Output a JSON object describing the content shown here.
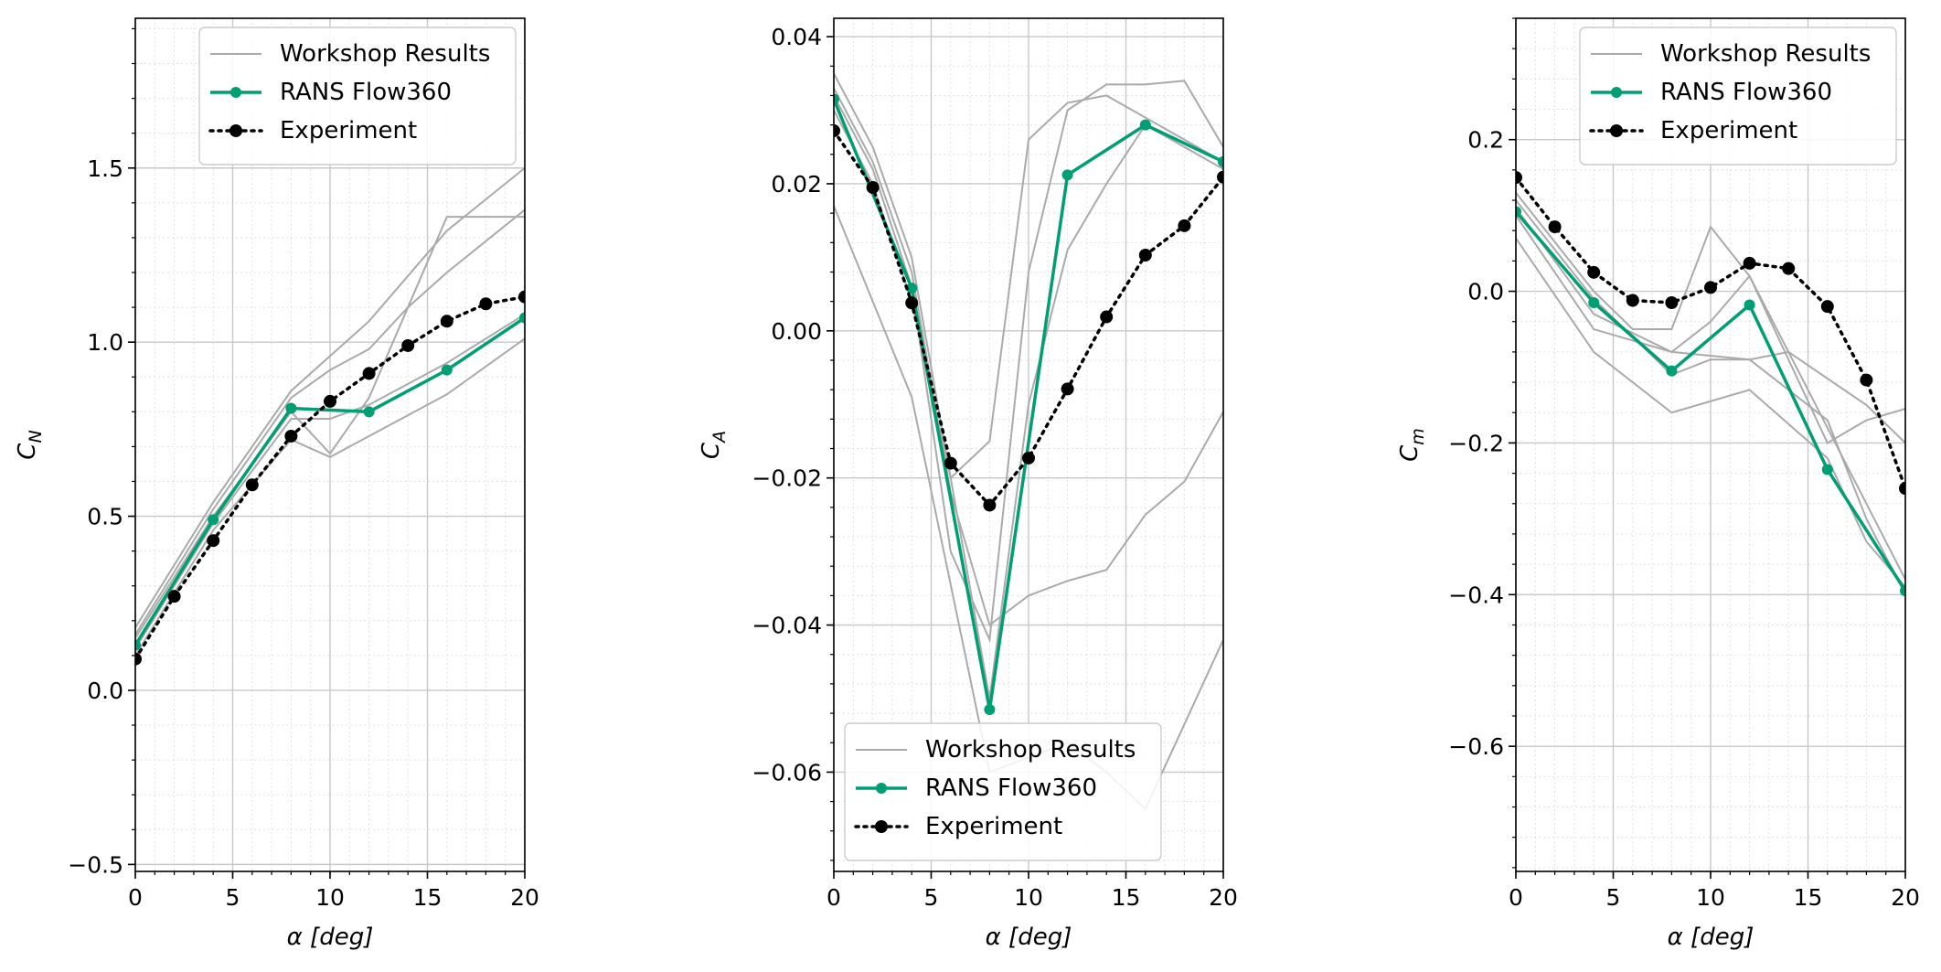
{
  "chart_data": [
    {
      "type": "line",
      "xlabel": "α [deg]",
      "ylabel": "C_N",
      "xlim": [
        0,
        20
      ],
      "ylim": [
        -0.52,
        1.93
      ],
      "xticks": [
        0,
        5,
        10,
        15,
        20
      ],
      "yticks": [
        -0.5,
        0.0,
        0.5,
        1.0,
        1.5
      ],
      "ytick_labels": [
        "−0.5",
        "0.0",
        "0.5",
        "1.0",
        "1.5"
      ],
      "grid": true,
      "legend_position": "top-right",
      "legend": [
        "Workshop Results",
        "RANS Flow360",
        "Experiment"
      ],
      "workshop_series": [
        {
          "x": [
            0,
            4,
            8,
            10,
            12,
            16,
            20
          ],
          "y": [
            0.18,
            0.54,
            0.86,
            0.96,
            1.06,
            1.32,
            1.5
          ]
        },
        {
          "x": [
            0,
            4,
            8,
            10,
            12,
            14,
            16,
            20
          ],
          "y": [
            0.16,
            0.52,
            0.84,
            0.92,
            0.98,
            1.1,
            1.2,
            1.38
          ]
        },
        {
          "x": [
            0,
            4,
            8,
            10,
            12,
            14,
            16,
            20
          ],
          "y": [
            0.15,
            0.5,
            0.8,
            0.68,
            0.84,
            1.1,
            1.36,
            1.36
          ]
        },
        {
          "x": [
            0,
            4,
            8,
            10,
            12,
            16,
            20
          ],
          "y": [
            0.12,
            0.48,
            0.78,
            0.78,
            0.82,
            0.94,
            1.08
          ]
        },
        {
          "x": [
            0,
            4,
            8,
            10,
            12,
            16,
            18,
            20
          ],
          "y": [
            0.1,
            0.46,
            0.72,
            0.67,
            0.73,
            0.85,
            0.93,
            1.01
          ]
        }
      ],
      "series": [
        {
          "name": "RANS Flow360",
          "x": [
            0,
            4,
            8,
            12,
            16,
            20
          ],
          "y": [
            0.13,
            0.49,
            0.81,
            0.8,
            0.92,
            1.07
          ]
        },
        {
          "name": "Experiment",
          "x": [
            0,
            2,
            4,
            6,
            8,
            10,
            12,
            14,
            16,
            18,
            20
          ],
          "y": [
            0.09,
            0.27,
            0.43,
            0.59,
            0.73,
            0.83,
            0.91,
            0.99,
            1.06,
            1.11,
            1.13
          ]
        }
      ]
    },
    {
      "type": "line",
      "xlabel": "α [deg]",
      "ylabel": "C_A",
      "xlim": [
        0,
        20
      ],
      "ylim": [
        -0.0735,
        0.0425
      ],
      "xticks": [
        0,
        5,
        10,
        15,
        20
      ],
      "yticks": [
        -0.06,
        -0.04,
        -0.02,
        0.0,
        0.02,
        0.04
      ],
      "ytick_labels": [
        "−0.06",
        "−0.04",
        "−0.02",
        "0.00",
        "0.02",
        "0.04"
      ],
      "grid": true,
      "legend_position": "bottom-left",
      "legend": [
        "Workshop Results",
        "RANS Flow360",
        "Experiment"
      ],
      "workshop_series": [
        {
          "x": [
            0,
            2,
            4,
            6,
            8,
            10,
            12,
            14,
            16,
            18,
            20
          ],
          "y": [
            0.035,
            0.025,
            0.01,
            -0.02,
            -0.015,
            0.026,
            0.031,
            0.032,
            0.029,
            0.026,
            0.023
          ]
        },
        {
          "x": [
            0,
            2,
            4,
            6,
            8,
            10,
            12,
            14,
            16,
            18,
            20
          ],
          "y": [
            0.033,
            0.023,
            0.008,
            -0.022,
            -0.04,
            -0.036,
            -0.034,
            -0.0325,
            -0.025,
            -0.0205,
            -0.011
          ]
        },
        {
          "x": [
            0,
            2,
            4,
            6,
            8,
            10,
            12,
            14,
            16,
            18,
            20
          ],
          "y": [
            0.032,
            0.022,
            0.006,
            -0.03,
            -0.042,
            0.008,
            0.03,
            0.0335,
            0.0335,
            0.034,
            0.025
          ]
        },
        {
          "x": [
            0,
            2,
            4,
            6,
            8,
            10,
            12,
            14,
            16,
            18,
            20
          ],
          "y": [
            0.03,
            0.02,
            0.004,
            -0.02,
            -0.05,
            -0.01,
            0.011,
            0.02,
            0.028,
            0.025,
            0.022
          ]
        },
        {
          "x": [
            0,
            4,
            8,
            10,
            12,
            14,
            16,
            20
          ],
          "y": [
            0.017,
            -0.009,
            -0.06,
            -0.058,
            -0.056,
            -0.06,
            -0.065,
            -0.042
          ]
        }
      ],
      "series": [
        {
          "name": "RANS Flow360",
          "x": [
            0,
            4,
            8,
            12,
            16,
            20
          ],
          "y": [
            0.0315,
            0.0058,
            -0.0515,
            0.0212,
            0.028,
            0.023
          ]
        },
        {
          "name": "Experiment",
          "x": [
            0,
            2,
            4,
            6,
            8,
            10,
            12,
            14,
            16,
            18,
            20
          ],
          "y": [
            0.0272,
            0.0195,
            0.0038,
            -0.018,
            -0.0237,
            -0.0173,
            -0.0079,
            0.0019,
            0.0103,
            0.0143,
            0.0209
          ]
        }
      ]
    },
    {
      "type": "line",
      "xlabel": "α [deg]",
      "ylabel": "C_m",
      "xlim": [
        0,
        20
      ],
      "ylim": [
        -0.765,
        0.36
      ],
      "xticks": [
        0,
        5,
        10,
        15,
        20
      ],
      "yticks": [
        -0.6,
        -0.4,
        -0.2,
        0.0,
        0.2
      ],
      "ytick_labels": [
        "−0.6",
        "−0.4",
        "−0.2",
        "0.0",
        "0.2"
      ],
      "grid": true,
      "legend_position": "top-right",
      "legend": [
        "Workshop Results",
        "RANS Flow360",
        "Experiment"
      ],
      "workshop_series": [
        {
          "x": [
            0,
            4,
            6,
            8,
            10,
            12,
            16,
            20
          ],
          "y": [
            0.13,
            0.0,
            -0.05,
            -0.05,
            0.085,
            0.02,
            -0.18,
            -0.38
          ]
        },
        {
          "x": [
            0,
            4,
            8,
            10,
            12,
            14,
            18,
            20
          ],
          "y": [
            0.12,
            -0.01,
            -0.11,
            -0.09,
            -0.09,
            -0.08,
            -0.15,
            -0.2
          ]
        },
        {
          "x": [
            0,
            4,
            8,
            10,
            12,
            16,
            18,
            20
          ],
          "y": [
            0.11,
            -0.03,
            -0.08,
            -0.04,
            0.02,
            -0.2,
            -0.17,
            -0.155
          ]
        },
        {
          "x": [
            0,
            4,
            8,
            12,
            16,
            18,
            20
          ],
          "y": [
            0.1,
            -0.05,
            -0.08,
            -0.09,
            -0.17,
            -0.3,
            -0.4
          ]
        },
        {
          "x": [
            0,
            4,
            8,
            12,
            16,
            18,
            20
          ],
          "y": [
            0.07,
            -0.08,
            -0.16,
            -0.13,
            -0.22,
            -0.33,
            -0.39
          ]
        }
      ],
      "series": [
        {
          "name": "RANS Flow360",
          "x": [
            0,
            4,
            8,
            12,
            16,
            20
          ],
          "y": [
            0.105,
            -0.015,
            -0.105,
            -0.018,
            -0.235,
            -0.395
          ]
        },
        {
          "name": "Experiment",
          "x": [
            0,
            2,
            4,
            6,
            8,
            10,
            12,
            14,
            16,
            18,
            20
          ],
          "y": [
            0.15,
            0.085,
            0.025,
            -0.012,
            -0.015,
            0.005,
            0.037,
            0.03,
            -0.02,
            -0.117,
            -0.26
          ]
        }
      ]
    }
  ],
  "colors": {
    "workshop": "#aaaaaa",
    "rans": "#009e73",
    "experiment": "#000000",
    "grid_major": "#c8c8c8",
    "grid_minor": "#e2e2e2"
  }
}
